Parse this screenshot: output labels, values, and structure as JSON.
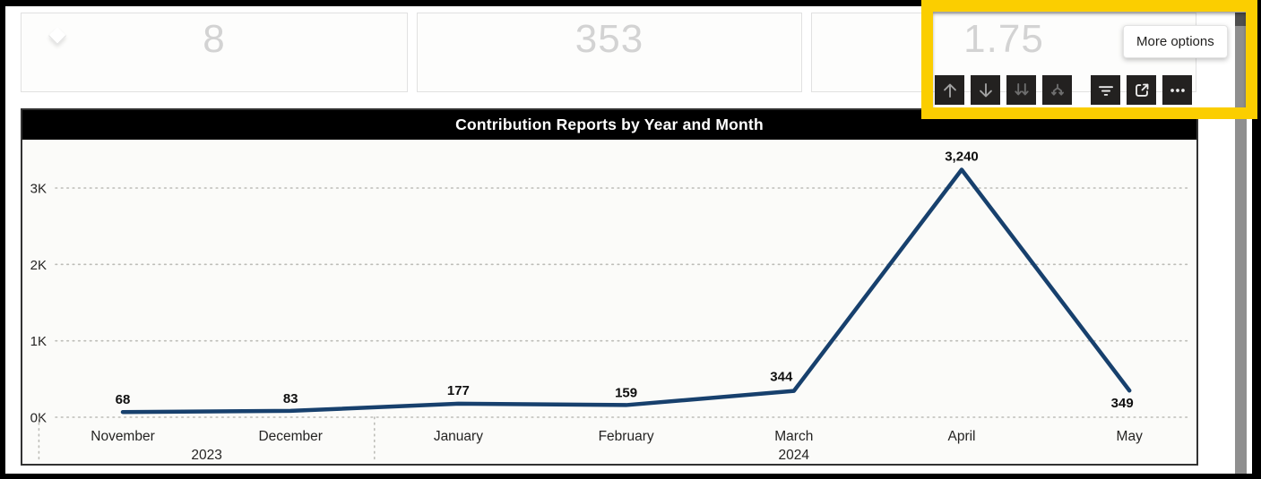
{
  "page": {
    "frame_color": "#000000",
    "background": "#ffffff"
  },
  "kpi_cards": [
    {
      "value": "8"
    },
    {
      "value": "353"
    },
    {
      "value": "1.75"
    }
  ],
  "visual_header": {
    "tooltip": "More options",
    "icons": [
      {
        "name": "drill-up-icon",
        "tone": "dim"
      },
      {
        "name": "drill-down-icon",
        "tone": "dim"
      },
      {
        "name": "go-to-next-level-icon",
        "tone": "dimmer"
      },
      {
        "name": "expand-all-icon",
        "tone": "dimmer"
      },
      {
        "name": "filters-icon",
        "tone": "bright",
        "gap_before": true
      },
      {
        "name": "focus-mode-icon",
        "tone": "bright"
      },
      {
        "name": "more-options-icon",
        "tone": "bright"
      }
    ]
  },
  "highlight": {
    "color": "#fbce00"
  },
  "chart_data": {
    "type": "line",
    "title": "Contribution Reports by Year and Month",
    "categories": [
      "November",
      "December",
      "January",
      "February",
      "March",
      "April",
      "May"
    ],
    "values": [
      68,
      83,
      177,
      159,
      344,
      3240,
      349
    ],
    "data_labels": [
      "68",
      "83",
      "177",
      "159",
      "344",
      "3,240",
      "349"
    ],
    "year_groups": [
      {
        "label": "2023",
        "months": [
          "November",
          "December"
        ]
      },
      {
        "label": "2024",
        "months": [
          "January",
          "February",
          "March",
          "April",
          "May"
        ]
      }
    ],
    "y_ticks": [
      "0K",
      "1K",
      "2K",
      "3K"
    ],
    "ylim": [
      0,
      3500
    ],
    "xlabel": "",
    "ylabel": "",
    "grid": "dotted-horizontal",
    "legend": "none",
    "line_color": "#17406d",
    "title_bar_color": "#000000",
    "title_text_color": "#ffffff"
  }
}
